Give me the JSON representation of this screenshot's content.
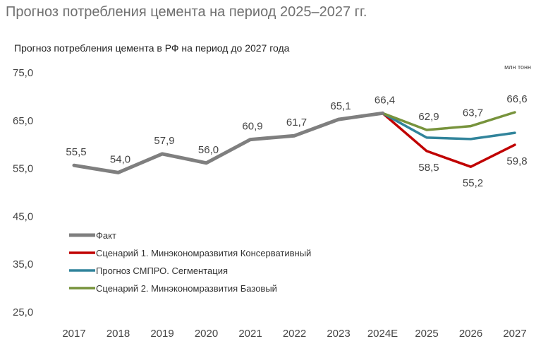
{
  "header": {
    "title": "Прогноз потребления цемента на период 2025–2027 гг."
  },
  "chart_data": {
    "type": "line",
    "title": "Прогноз потребления цемента в РФ на период до 2027 года",
    "unit": "млн тонн",
    "categories": [
      "2017",
      "2018",
      "2019",
      "2020",
      "2021",
      "2022",
      "2023",
      "2024E",
      "2025",
      "2026",
      "2027"
    ],
    "ylim": [
      25,
      75
    ],
    "yticks": [
      "75,0",
      "65,0",
      "55,0",
      "45,0",
      "35,0",
      "25,0"
    ],
    "ytick_values": [
      75,
      65,
      55,
      45,
      35,
      25
    ],
    "grid": false,
    "legend_position": "bottom-left",
    "series": [
      {
        "name": "Факт",
        "color": "#7f7f7f",
        "values": [
          55.5,
          54.0,
          57.9,
          56.0,
          60.9,
          61.7,
          65.1,
          66.4,
          null,
          null,
          null
        ]
      },
      {
        "name": "Сценарий 1. Минэкономразвития Консервативный",
        "color": "#c00000",
        "values": [
          null,
          null,
          null,
          null,
          null,
          null,
          null,
          66.4,
          58.5,
          55.2,
          59.8
        ]
      },
      {
        "name": "Прогноз СМПРО. Сегментация",
        "color": "#31849b",
        "values": [
          null,
          null,
          null,
          null,
          null,
          null,
          null,
          66.4,
          61.3,
          61.0,
          62.3
        ]
      },
      {
        "name": "Сценарий 2. Минэкономразвития Базовый",
        "color": "#77933c",
        "values": [
          null,
          null,
          null,
          null,
          null,
          null,
          null,
          66.4,
          62.9,
          63.7,
          66.6
        ]
      }
    ],
    "data_labels": [
      {
        "category": "2017",
        "text": "55,5",
        "series": "Факт"
      },
      {
        "category": "2018",
        "text": "54,0",
        "series": "Факт"
      },
      {
        "category": "2019",
        "text": "57,9",
        "series": "Факт"
      },
      {
        "category": "2020",
        "text": "56,0",
        "series": "Факт"
      },
      {
        "category": "2021",
        "text": "60,9",
        "series": "Факт"
      },
      {
        "category": "2022",
        "text": "61,7",
        "series": "Факт"
      },
      {
        "category": "2023",
        "text": "65,1",
        "series": "Факт"
      },
      {
        "category": "2024E",
        "text": "66,4",
        "series": "Факт"
      },
      {
        "category": "2025",
        "text": "62,9",
        "series": "Сценарий 2. Минэкономразвития Базовый"
      },
      {
        "category": "2026",
        "text": "63,7",
        "series": "Сценарий 2. Минэкономразвития Базовый"
      },
      {
        "category": "2027",
        "text": "66,6",
        "series": "Сценарий 2. Минэкономразвития Базовый"
      },
      {
        "category": "2025",
        "text": "58,5",
        "series": "Сценарий 1. Минэкономразвития Консервативный"
      },
      {
        "category": "2026",
        "text": "55,2",
        "series": "Сценарий 1. Минэкономразвития Консервативный"
      },
      {
        "category": "2027",
        "text": "59,8",
        "series": "Сценарий 1. Минэкономразвития Консервативный"
      }
    ]
  }
}
